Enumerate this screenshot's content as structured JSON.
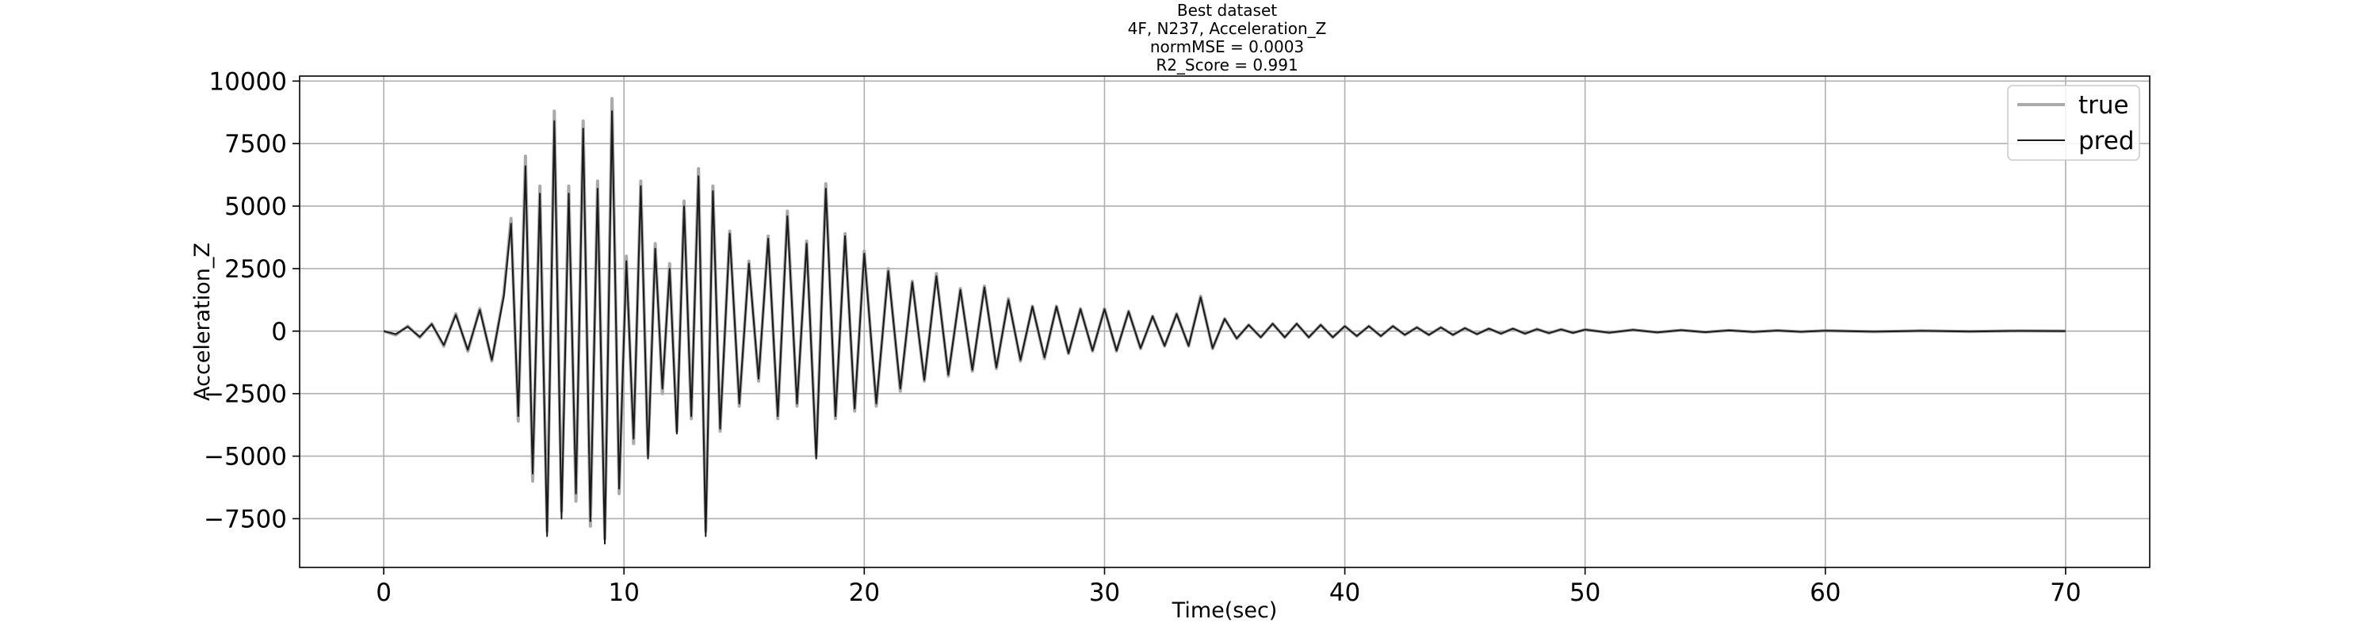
{
  "chart_data": {
    "type": "line",
    "title_lines": [
      "Best dataset",
      "4F, N237, Acceleration_Z",
      "normMSE = 0.0003",
      "R2_Score = 0.991"
    ],
    "xlabel": "Time(sec)",
    "ylabel": "Acceleration_Z",
    "xlim": [
      -3.5,
      73.5
    ],
    "ylim": [
      -9450,
      10200
    ],
    "x_ticks": [
      0,
      10,
      20,
      30,
      40,
      50,
      60,
      70
    ],
    "x_tick_labels": [
      "0",
      "10",
      "20",
      "30",
      "40",
      "50",
      "60",
      "70"
    ],
    "y_ticks": [
      -7500,
      -5000,
      -2500,
      0,
      2500,
      5000,
      7500,
      10000
    ],
    "y_tick_labels": [
      "−7500",
      "−5000",
      "−2500",
      "0",
      "2500",
      "5000",
      "7500",
      "10000"
    ],
    "grid": true,
    "legend_position": "top-right",
    "series": [
      {
        "name": "true",
        "color": "#aaaaaa",
        "x": [
          0,
          0.5,
          1,
          1.5,
          2,
          2.5,
          3,
          3.5,
          4,
          4.5,
          5,
          5.3,
          5.6,
          5.9,
          6.2,
          6.5,
          6.8,
          7.1,
          7.4,
          7.7,
          8,
          8.3,
          8.6,
          8.9,
          9.2,
          9.5,
          9.8,
          10.1,
          10.4,
          10.7,
          11,
          11.3,
          11.6,
          11.9,
          12.2,
          12.5,
          12.8,
          13.1,
          13.4,
          13.7,
          14,
          14.4,
          14.8,
          15.2,
          15.6,
          16,
          16.4,
          16.8,
          17.2,
          17.6,
          18,
          18.4,
          18.8,
          19.2,
          19.6,
          20,
          20.5,
          21,
          21.5,
          22,
          22.5,
          23,
          23.5,
          24,
          24.5,
          25,
          25.5,
          26,
          26.5,
          27,
          27.5,
          28,
          28.5,
          29,
          29.5,
          30,
          30.5,
          31,
          31.5,
          32,
          32.5,
          33,
          33.5,
          34,
          34.5,
          35,
          35.5,
          36,
          36.5,
          37,
          37.5,
          38,
          38.5,
          39,
          39.5,
          40,
          40.5,
          41,
          41.5,
          42,
          42.5,
          43,
          43.5,
          44,
          44.5,
          45,
          45.5,
          46,
          46.5,
          47,
          47.5,
          48,
          48.5,
          49,
          49.5,
          50,
          51,
          52,
          53,
          54,
          55,
          56,
          57,
          58,
          59,
          60,
          62,
          64,
          66,
          68,
          70
        ],
        "y": [
          0,
          -150,
          200,
          -250,
          300,
          -600,
          700,
          -800,
          900,
          -1200,
          1500,
          4500,
          -3600,
          7000,
          -6000,
          5800,
          -8000,
          8800,
          -7200,
          5800,
          -6800,
          8400,
          -7800,
          6000,
          -8300,
          9300,
          -6500,
          3000,
          -4500,
          6000,
          -5000,
          3500,
          -2500,
          2700,
          -4000,
          5200,
          -3500,
          6500,
          -8000,
          5800,
          -4000,
          4000,
          -3000,
          2800,
          -2000,
          3800,
          -3500,
          4800,
          -3000,
          3600,
          -5000,
          5900,
          -3500,
          3900,
          -3200,
          3200,
          -3000,
          2500,
          -2400,
          2000,
          -2000,
          2300,
          -1800,
          1700,
          -1600,
          1800,
          -1500,
          1300,
          -1200,
          1000,
          -1100,
          1000,
          -900,
          900,
          -800,
          900,
          -800,
          800,
          -700,
          600,
          -600,
          700,
          -600,
          1400,
          -700,
          500,
          -300,
          250,
          -250,
          300,
          -250,
          300,
          -250,
          250,
          -250,
          200,
          -200,
          200,
          -200,
          200,
          -150,
          150,
          -150,
          150,
          -150,
          120,
          -120,
          100,
          -100,
          100,
          -100,
          80,
          -80,
          70,
          -70,
          60,
          -60,
          50,
          -50,
          40,
          -40,
          30,
          -30,
          25,
          -25,
          20,
          -20,
          15,
          -15,
          10,
          0
        ]
      },
      {
        "name": "pred",
        "color": "#1a1a1a",
        "x": [
          0,
          0.5,
          1,
          1.5,
          2,
          2.5,
          3,
          3.5,
          4,
          4.5,
          5,
          5.3,
          5.6,
          5.9,
          6.2,
          6.5,
          6.8,
          7.1,
          7.4,
          7.7,
          8,
          8.3,
          8.6,
          8.9,
          9.2,
          9.5,
          9.8,
          10.1,
          10.4,
          10.7,
          11,
          11.3,
          11.6,
          11.9,
          12.2,
          12.5,
          12.8,
          13.1,
          13.4,
          13.7,
          14,
          14.4,
          14.8,
          15.2,
          15.6,
          16,
          16.4,
          16.8,
          17.2,
          17.6,
          18,
          18.4,
          18.8,
          19.2,
          19.6,
          20,
          20.5,
          21,
          21.5,
          22,
          22.5,
          23,
          23.5,
          24,
          24.5,
          25,
          25.5,
          26,
          26.5,
          27,
          27.5,
          28,
          28.5,
          29,
          29.5,
          30,
          30.5,
          31,
          31.5,
          32,
          32.5,
          33,
          33.5,
          34,
          34.5,
          35,
          35.5,
          36,
          36.5,
          37,
          37.5,
          38,
          38.5,
          39,
          39.5,
          40,
          40.5,
          41,
          41.5,
          42,
          42.5,
          43,
          43.5,
          44,
          44.5,
          45,
          45.5,
          46,
          46.5,
          47,
          47.5,
          48,
          48.5,
          49,
          49.5,
          50,
          51,
          52,
          53,
          54,
          55,
          56,
          57,
          58,
          59,
          60,
          62,
          64,
          66,
          68,
          70
        ],
        "y": [
          0,
          -120,
          180,
          -230,
          280,
          -560,
          650,
          -750,
          850,
          -1150,
          1400,
          4300,
          -3400,
          6600,
          -5700,
          5500,
          -8200,
          8400,
          -7500,
          5500,
          -6500,
          8100,
          -7600,
          5700,
          -8500,
          8800,
          -6300,
          2800,
          -4300,
          5800,
          -5100,
          3300,
          -2300,
          2500,
          -4100,
          5000,
          -3400,
          6200,
          -8200,
          5600,
          -3900,
          3900,
          -2900,
          2700,
          -1900,
          3700,
          -3400,
          4600,
          -2900,
          3500,
          -5100,
          5700,
          -3400,
          3800,
          -3100,
          3100,
          -2900,
          2400,
          -2300,
          1950,
          -1950,
          2200,
          -1750,
          1650,
          -1550,
          1750,
          -1450,
          1250,
          -1150,
          980,
          -1050,
          980,
          -880,
          880,
          -780,
          880,
          -780,
          780,
          -680,
          590,
          -590,
          680,
          -590,
          1350,
          -680,
          490,
          -290,
          245,
          -245,
          295,
          -245,
          295,
          -245,
          245,
          -245,
          196,
          -196,
          196,
          -196,
          196,
          -147,
          147,
          -147,
          147,
          -147,
          118,
          -118,
          98,
          -98,
          98,
          -98,
          78,
          -78,
          69,
          -69,
          59,
          -59,
          49,
          -49,
          39,
          -39,
          29,
          -29,
          24,
          -24,
          19,
          -19,
          14,
          -14,
          9,
          0
        ]
      }
    ]
  }
}
